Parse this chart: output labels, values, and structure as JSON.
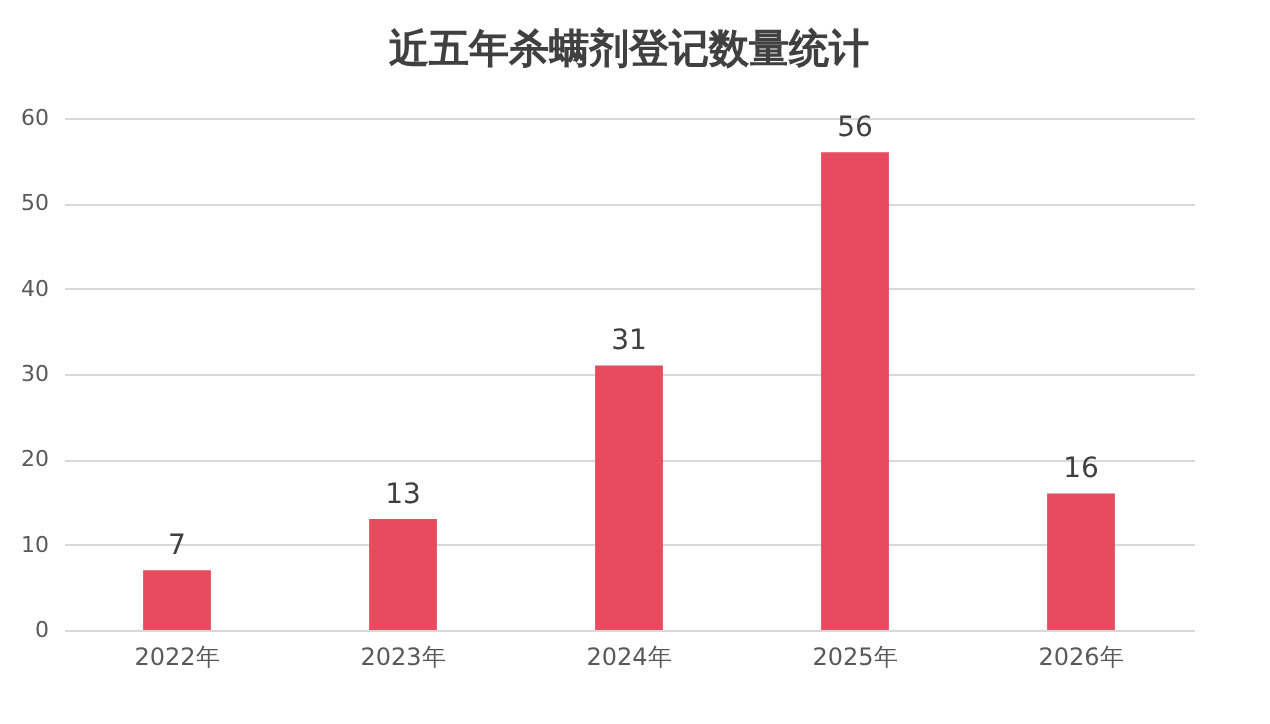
{
  "chart_data": {
    "type": "bar",
    "title": "近五年杀螨剂登记数量统计",
    "categories": [
      "2022年",
      "2023年",
      "2024年",
      "2025年",
      "2026年"
    ],
    "values": [
      7,
      13,
      31,
      56,
      16
    ],
    "color": "#e64b5e",
    "ylim": [
      0,
      60
    ],
    "yticks": [
      0,
      10,
      20,
      30,
      40,
      50,
      60
    ],
    "grid": "y",
    "data_labels": true
  }
}
